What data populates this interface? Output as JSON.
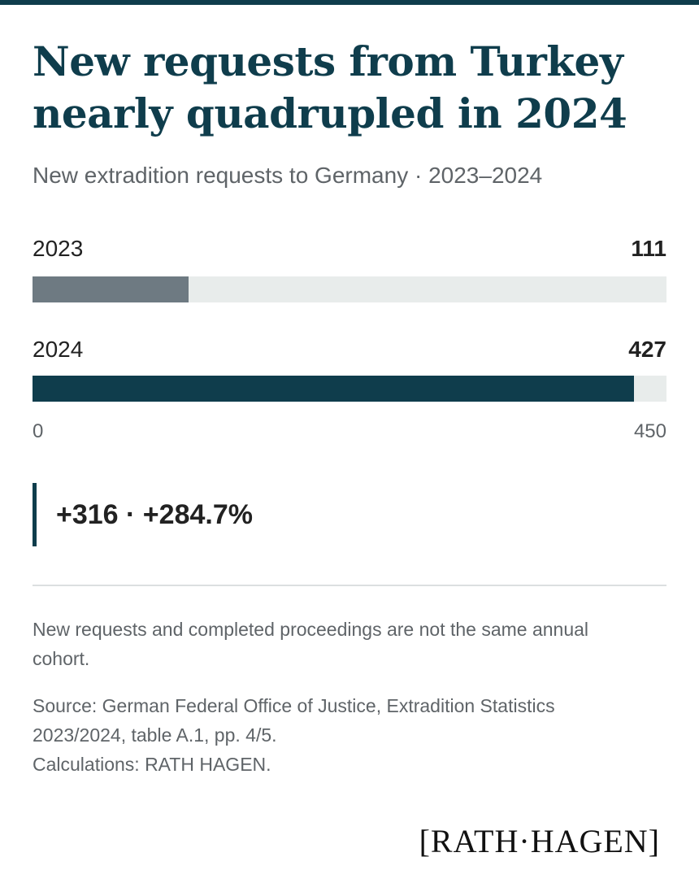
{
  "header": {
    "title": "New requests from Turkey nearly quadrupled in 2024",
    "subtitle": "New extradition requests to Germany · 2023–2024"
  },
  "chart_data": {
    "type": "bar",
    "orientation": "horizontal",
    "categories": [
      "2023",
      "2024"
    ],
    "values": [
      111,
      427
    ],
    "value_labels": [
      "111",
      "427"
    ],
    "xlim": [
      0,
      450
    ],
    "axis_ticks": [
      "0",
      "450"
    ],
    "colors": [
      "#6e7a82",
      "#0f3d4c"
    ],
    "track_color": "#e8eceb",
    "grid": false,
    "legend": "none"
  },
  "callout": {
    "text": "+316 · +284.7%"
  },
  "footer": {
    "note": "New requests and completed proceedings are not the same annual cohort.",
    "source_line1": "Source: German Federal Office of Justice, Extradition Statistics 2023/2024, table A.1, pp. 4/5.",
    "source_line2": "Calculations: RATH HAGEN.",
    "logo": "[RATH·HAGEN]"
  },
  "colors": {
    "accent": "#0f3d4c",
    "muted_text": "#5f6468"
  }
}
